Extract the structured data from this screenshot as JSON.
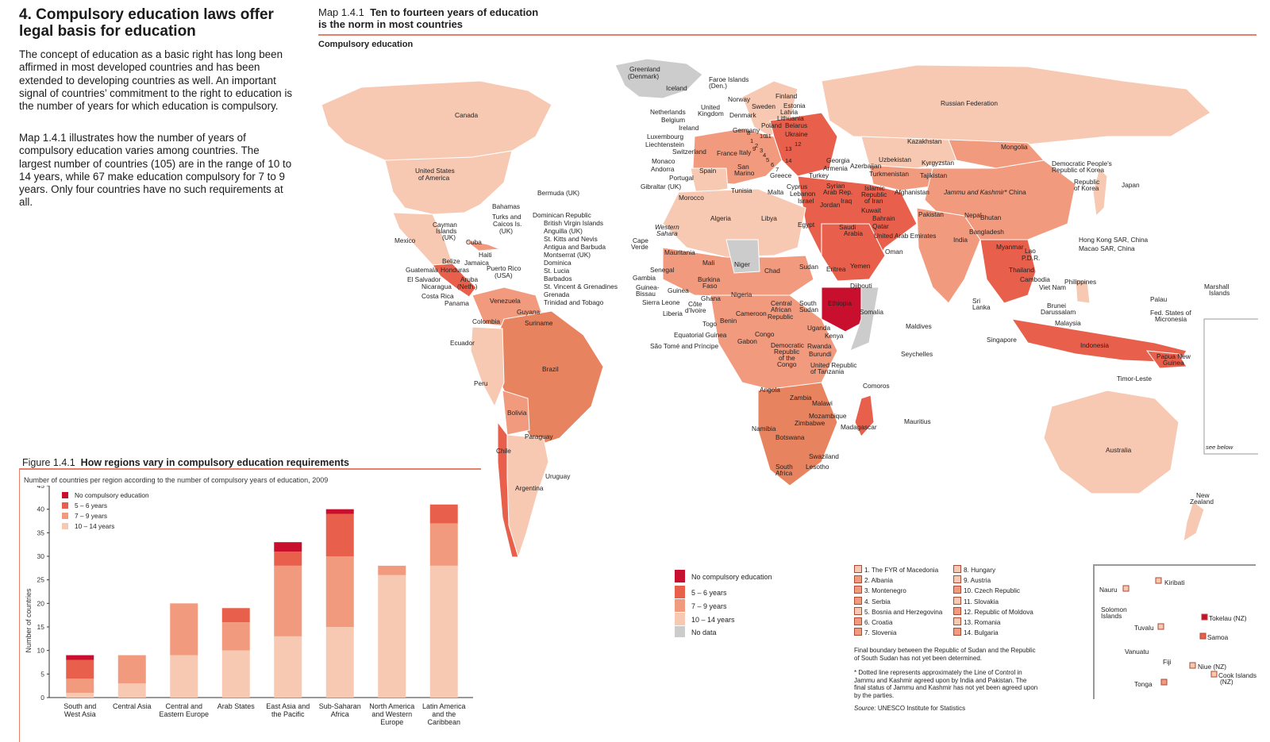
{
  "section": {
    "title": "4. Compulsory education laws offer legal basis for education",
    "paragraph_1": "The concept of education as a basic right has long been affirmed in most developed countries and has been extended to developing countries as well. An important signal of countries’ commitment to the right to education is the number of years for which education is compulsory.",
    "paragraph_2": "Map 1.4.1 illustrates how the number of years of compulsory education varies among countries. The largest number of countries (105) are in the range of 10 to 14 years, while 67 make education compulsory for 7 to 9 years. Only four countries have no such requirements at all."
  },
  "map": {
    "number": "Map 1.4.1",
    "title_line1": "Ten to fourteen years of education",
    "title_line2": "is the norm in most countries",
    "subtitle": "Compulsory education",
    "colors": {
      "none": "#c8102e",
      "y5_6": "#e8604c",
      "y7_9": "#f29a7e",
      "y10_14": "#f7c9b3",
      "no_data": "#cccccc"
    },
    "labels": {
      "greenland": "Greenland",
      "greenland2": "(Denmark)",
      "canada": "Canada",
      "usa": "United States",
      "usa2": "of America",
      "mexico": "Mexico",
      "bermuda": "Bermuda (UK)",
      "bahamas": "Bahamas",
      "turks": "Turks and",
      "turks2": "Caicos Is.",
      "turks3": "(UK)",
      "cayman": "Cayman",
      "cayman2": "Islands",
      "cayman3": "(UK)",
      "cuba": "Cuba",
      "haiti": "Haiti",
      "jamaica": "Jamaica",
      "belize": "Belize",
      "guatemala": "Guatemala",
      "honduras": "Honduras",
      "elsalvador": "El Salvador",
      "nicaragua": "Nicaragua",
      "costarica": "Costa Rica",
      "panama": "Panama",
      "aruba": "Aruba",
      "aruba2": "(Neth.)",
      "puertorico": "Puerto Rico",
      "puertorico2": "(USA)",
      "venezuela": "Venezuela",
      "guyana": "Guyana",
      "suriname": "Suriname",
      "colombia": "Colombia",
      "ecuador": "Ecuador",
      "peru": "Peru",
      "brazil": "Brazil",
      "bolivia": "Bolivia",
      "paraguay": "Paraguay",
      "chile": "Chile",
      "argentina": "Argentina",
      "uruguay": "Uruguay",
      "iceland": "Iceland",
      "faroe": "Faroe Islands",
      "faroe2": "(Den.)",
      "norway": "Norway",
      "sweden": "Sweden",
      "finland": "Finland",
      "estonia": "Estonia",
      "latvia": "Latvia",
      "lithuania": "Lithuania",
      "uk": "United",
      "uk2": "Kingdom",
      "denmark": "Denmark",
      "netherlands": "Netherlands",
      "belgium": "Belgium",
      "ireland": "Ireland",
      "germany": "Germany",
      "poland": "Poland",
      "belarus": "Belarus",
      "ukraine": "Ukraine",
      "luxembourg": "Luxembourg",
      "liechtenstein": "Liechtenstein",
      "switzerland": "Switzerland",
      "france": "France",
      "italy": "Italy",
      "monaco": "Monaco",
      "andorra": "Andorra",
      "spain": "Spain",
      "sanmarino": "San",
      "sanmarino2": "Marino",
      "portugal": "Portugal",
      "gibraltar": "Gibraltar (UK)",
      "greece": "Greece",
      "malta": "Malta",
      "cyprus": "Cyprus",
      "lebanon": "Lebanon",
      "israel": "Israel",
      "russia": "Russian Federation",
      "kazakhstan": "Kazakhstan",
      "mongolia": "Mongolia",
      "georgia": "Georgia",
      "armenia": "Armenia",
      "azerbaijan": "Azerbaijan",
      "uzbekistan": "Uzbekistan",
      "kyrgyzstan": "Kyrgyzstan",
      "turkmenistan": "Turkmenistan",
      "tajikistan": "Tajikistan",
      "turkey": "Turkey",
      "syria": "Syrian",
      "syria2": "Arab Rep.",
      "iraq": "Iraq",
      "iran": "Islamic",
      "iran2": "Republic",
      "iran3": "of Iran",
      "afghanistan": "Afghanistan",
      "jk": "Jammu and Kashmir*",
      "pakistan": "Pakistan",
      "china": "China",
      "dprk": "Democratic People's",
      "dprk2": "Republic of Korea",
      "korea": "Republic",
      "korea2": "of Korea",
      "japan": "Japan",
      "jordan": "Jordan",
      "kuwait": "Kuwait",
      "bahrain": "Bahrain",
      "qatar": "Qatar",
      "uae": "United Arab Emirates",
      "saudi": "Saudi",
      "saudi2": "Arabia",
      "oman": "Oman",
      "yemen": "Yemen",
      "nepal": "Nepal",
      "bhutan": "Bhutan",
      "bangladesh": "Bangladesh",
      "india": "India",
      "myanmar": "Myanmar",
      "laos": "Lao",
      "laos2": "P.D.R.",
      "thailand": "Thailand",
      "cambodia": "Cambodia",
      "vietnam": "Viet Nam",
      "philippines": "Philippines",
      "hongkong": "Hong Kong SAR, China",
      "macao": "Macao SAR, China",
      "srilanka": "Sri",
      "srilanka2": "Lanka",
      "maldives": "Maldives",
      "brunei": "Brunei",
      "brunei2": "Darussalam",
      "malaysia": "Malaysia",
      "singapore": "Singapore",
      "indonesia": "Indonesia",
      "png": "Papua New",
      "png2": "Guinea",
      "timor": "Timor-Leste",
      "palau": "Palau",
      "micronesia": "Fed. States of",
      "micronesia2": "Micronesia",
      "marshall": "Marshall",
      "marshall2": "Islands",
      "australia": "Australia",
      "newzealand": "New",
      "newzealand2": "Zealand",
      "seebelow": "see below",
      "morocco": "Morocco",
      "tunisia": "Tunisia",
      "algeria": "Algeria",
      "libya": "Libya",
      "egypt": "Egypt",
      "wsahara": "Western",
      "wsahara2": "Sahara",
      "capeverde": "Cape",
      "capeverde2": "Verde",
      "mauritania": "Mauritania",
      "mali": "Mali",
      "niger": "Niger",
      "chad": "Chad",
      "sudan": "Sudan",
      "eritrea": "Eritrea",
      "senegal": "Senegal",
      "gambia": "Gambia",
      "guineabissau": "Guinea-",
      "guineabissau2": "Bissau",
      "guinea": "Guinea",
      "sierraleone": "Sierra Leone",
      "liberia": "Liberia",
      "cotedivoire": "Côte",
      "cotedivoire2": "d'Ivoire",
      "burkina": "Burkina",
      "burkina2": "Faso",
      "ghana": "Ghana",
      "togo": "Togo",
      "benin": "Benin",
      "nigeria": "Nigeria",
      "cameroon": "Cameroon",
      "car": "Central",
      "car2": "African",
      "car3": "Republic",
      "southsudan": "South",
      "southsudan2": "Sudan",
      "djibouti": "Djibouti",
      "ethiopia": "Ethiopia",
      "somalia": "Somalia",
      "eqguinea": "Equatorial Guinea",
      "saotome": "São Tomé and Príncipe",
      "gabon": "Gabon",
      "congo": "Congo",
      "drc": "Democratic",
      "drc2": "Republic",
      "drc3": "of the",
      "drc4": "Congo",
      "uganda": "Uganda",
      "kenya": "Kenya",
      "rwanda": "Rwanda",
      "burundi": "Burundi",
      "tanzania": "United Republic",
      "tanzania2": "of Tanzania",
      "seychelles": "Seychelles",
      "comoros": "Comoros",
      "angola": "Angola",
      "zambia": "Zambia",
      "malawi": "Malawi",
      "mozambique": "Mozambique",
      "zimbabwe": "Zimbabwe",
      "madagascar": "Madagascar",
      "mauritius": "Mauritius",
      "namibia": "Namibia",
      "botswana": "Botswana",
      "swaziland": "Swaziland",
      "lesotho": "Lesotho",
      "southafrica": "South",
      "southafrica2": "Africa"
    },
    "caribbean_list": [
      "Dominican Republic",
      "British Virgin Islands",
      "Anguilla (UK)",
      "St. Kitts and Nevis",
      "Antigua and Barbuda",
      "Montserrat (UK)",
      "Dominica",
      "St. Lucia",
      "Barbados",
      "St. Vincent & Grenadines",
      "Grenada",
      "Trinidad and Tobago"
    ],
    "europe_numbers": [
      "1",
      "2",
      "3",
      "4",
      "5",
      "6",
      "7",
      "8",
      "9",
      "10",
      "11",
      "12",
      "13",
      "14"
    ],
    "legend": {
      "none": "No compulsory education",
      "y5_6": "5 – 6 years",
      "y7_9": "7 – 9 years",
      "y10_14": "10 – 14 years",
      "no_data": "No data"
    },
    "numbered_countries": [
      "1. The FYR of Macedonia",
      "2. Albania",
      "3. Montenegro",
      "4. Serbia",
      "5. Bosnia and Herzegovina",
      "6. Croatia",
      "7. Slovenia",
      "8. Hungary",
      "9. Austria",
      "10. Czech Republic",
      "11. Slovakia",
      "12. Republic of Moldova",
      "13. Romania",
      "14. Bulgaria"
    ],
    "note_sudan": "Final boundary between the Republic of Sudan and the Republic of South Sudan has not yet been determined.",
    "note_kashmir": "* Dotted line represents approximately the Line of Control in Jammu and Kashmir agreed upon by India and Pakistan. The final status of Jammu and Kashmir has not yet been agreed upon by the parties.",
    "source_label": "Source:",
    "source_text": "UNESCO Institute for Statistics",
    "pacific_inset": {
      "nauru": "Nauru",
      "kiribati": "Kiribati",
      "solomon": "Solomon",
      "solomon2": "Islands",
      "tuvalu": "Tuvalu",
      "tokelau": "Tokelau (NZ)",
      "samoa": "Samoa",
      "vanuatu": "Vanuatu",
      "fiji": "Fiji",
      "niue": "Niue (NZ)",
      "cook": "Cook Islands",
      "cook2": "(NZ)",
      "tonga": "Tonga"
    }
  },
  "figure": {
    "number": "Figure 1.4.1",
    "title": "How regions vary in compulsory education requirements",
    "subtitle": "Number of countries per region according to the number of compulsory years of education, 2009"
  },
  "chart_data": {
    "type": "bar",
    "stacked": true,
    "title": "How regions vary in compulsory education requirements",
    "xlabel": "",
    "ylabel": "Number of countries",
    "ylim": [
      0,
      45
    ],
    "yticks": [
      0,
      5,
      10,
      15,
      20,
      25,
      30,
      35,
      40,
      45
    ],
    "categories": [
      [
        "South and",
        "West Asia"
      ],
      [
        "Central Asia"
      ],
      [
        "Central and",
        "Eastern Europe"
      ],
      [
        "Arab States"
      ],
      [
        "East Asia and",
        "the Pacific"
      ],
      [
        "Sub-Saharan",
        "Africa"
      ],
      [
        "North America",
        "and Western",
        "Europe"
      ],
      [
        "Latin America",
        "and the",
        "Caribbean"
      ]
    ],
    "series": [
      {
        "name": "10 – 14 years",
        "color": "#f7c9b3",
        "values": [
          1,
          3,
          9,
          10,
          13,
          15,
          26,
          28
        ]
      },
      {
        "name": "7 – 9 years",
        "color": "#f29a7e",
        "values": [
          3,
          6,
          11,
          6,
          15,
          15,
          2,
          9
        ]
      },
      {
        "name": "5 – 6 years",
        "color": "#e8604c",
        "values": [
          4,
          0,
          0,
          3,
          3,
          9,
          0,
          4
        ]
      },
      {
        "name": "No compulsory education",
        "color": "#c8102e",
        "values": [
          1,
          0,
          0,
          0,
          2,
          1,
          0,
          0
        ]
      }
    ],
    "legend": [
      "No compulsory education",
      "5 – 6 years",
      "7 – 9 years",
      "10 – 14 years"
    ],
    "legend_position": "top-left"
  }
}
